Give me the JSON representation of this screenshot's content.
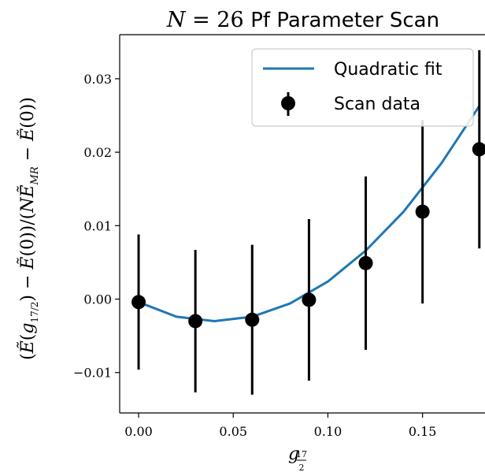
{
  "chart_data": {
    "type": "scatter",
    "title": "N = 26 Pf Parameter Scan",
    "xlabel": "g_{17/2}",
    "ylabel": "(Ẽ(g_{17/2}) − Ẽ(0))/(N Ẽ̄_MR − Ẽ(0))",
    "xlim": [
      -0.01,
      0.183
    ],
    "ylim": [
      -0.0155,
      0.036
    ],
    "xticks": [
      0.0,
      0.05,
      0.1,
      0.15
    ],
    "xtick_labels": [
      "0.00",
      "0.05",
      "0.10",
      "0.15"
    ],
    "yticks": [
      -0.01,
      0.0,
      0.01,
      0.02,
      0.03
    ],
    "ytick_labels": [
      "−0.01",
      "0.00",
      "0.01",
      "0.02",
      "0.03"
    ],
    "grid": false,
    "legend_position": "top-right",
    "legend": [
      "Quadratic fit",
      "Scan data"
    ],
    "series": [
      {
        "name": "Scan data",
        "type": "errorbar",
        "color": "#000000",
        "x": [
          0.0,
          0.03,
          0.06,
          0.09,
          0.12,
          0.15,
          0.18
        ],
        "y": [
          -0.0004,
          -0.003,
          -0.0028,
          -0.0001,
          0.0049,
          0.0119,
          0.0204
        ],
        "yerr": [
          0.0092,
          0.0097,
          0.0102,
          0.011,
          0.0118,
          0.0125,
          0.0135
        ]
      },
      {
        "name": "Quadratic fit",
        "type": "line",
        "color": "#1f77b4",
        "x": [
          0.0,
          0.02,
          0.04,
          0.06,
          0.08,
          0.1,
          0.12,
          0.14,
          0.16,
          0.18
        ],
        "y": [
          -0.0004,
          -0.0024,
          -0.003,
          -0.0024,
          -0.0006,
          0.0024,
          0.0066,
          0.0119,
          0.0185,
          0.0263
        ]
      }
    ]
  }
}
